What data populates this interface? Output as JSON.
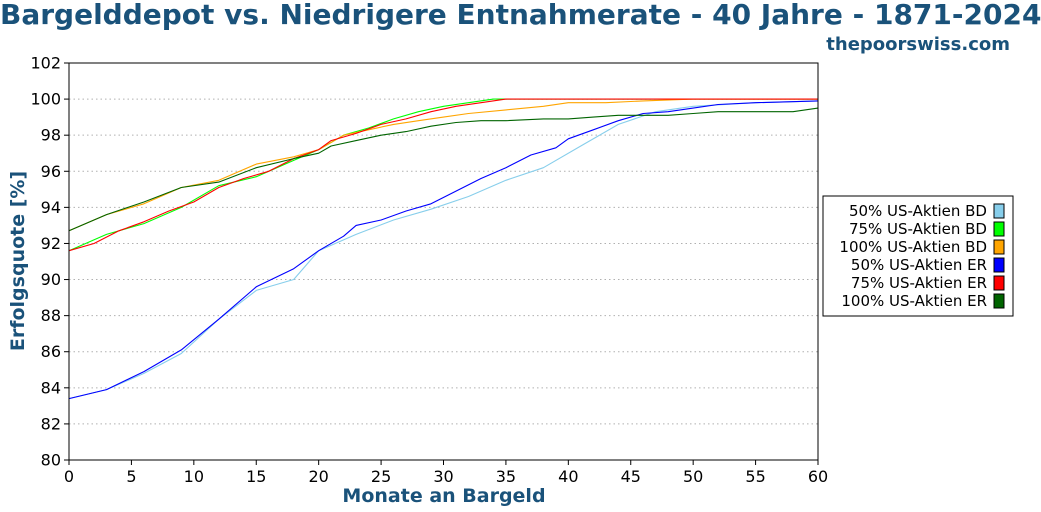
{
  "header": {
    "title": "Bargelddepot vs. Niedrigere Entnahmerate - 40 Jahre - 1871-2024",
    "brand": "thepoorswiss.com"
  },
  "chart_data": {
    "type": "line",
    "title": "Bargelddepot vs. Niedrigere Entnahmerate - 40 Jahre - 1871-2024",
    "xlabel": "Monate an Bargeld",
    "ylabel": "Erfolgsquote [%]",
    "xlim": [
      0,
      60
    ],
    "ylim": [
      80,
      102
    ],
    "xticks": [
      0,
      5,
      10,
      15,
      20,
      25,
      30,
      35,
      40,
      45,
      50,
      55,
      60
    ],
    "yticks": [
      80,
      82,
      84,
      86,
      88,
      90,
      92,
      94,
      96,
      98,
      100,
      102
    ],
    "grid": "horizontal dotted",
    "legend_position": "right",
    "series": [
      {
        "name": "50% US-Aktien BD",
        "color": "#87ceeb",
        "x": [
          0,
          3,
          6,
          9,
          12,
          15,
          18,
          20,
          23,
          26,
          29,
          32,
          35,
          38,
          41,
          44,
          47,
          50,
          55,
          60
        ],
        "y": [
          83.4,
          83.9,
          84.8,
          85.9,
          87.8,
          89.4,
          90.0,
          91.6,
          92.5,
          93.3,
          93.9,
          94.6,
          95.5,
          96.2,
          97.4,
          98.6,
          99.3,
          99.6,
          99.8,
          99.9
        ]
      },
      {
        "name": "75% US-Aktien BD",
        "color": "#00ff00",
        "x": [
          0,
          3,
          6,
          9,
          12,
          15,
          18,
          20,
          22,
          24,
          26,
          28,
          30,
          32,
          34,
          36,
          38,
          40,
          50,
          60
        ],
        "y": [
          91.6,
          92.5,
          93.1,
          94.0,
          95.2,
          95.7,
          96.6,
          97.2,
          98.0,
          98.4,
          98.9,
          99.3,
          99.6,
          99.8,
          100,
          100,
          100,
          100,
          100,
          100
        ]
      },
      {
        "name": "100% US-Aktien BD",
        "color": "#ffa500",
        "x": [
          0,
          3,
          6,
          9,
          12,
          15,
          18,
          20,
          22,
          24,
          26,
          28,
          30,
          32,
          35,
          38,
          40,
          43,
          46,
          50,
          55,
          60
        ],
        "y": [
          92.7,
          93.6,
          94.2,
          95.1,
          95.5,
          96.4,
          96.8,
          97.2,
          98.0,
          98.3,
          98.6,
          98.8,
          99.0,
          99.2,
          99.4,
          99.6,
          99.8,
          99.8,
          99.9,
          100,
          100,
          100
        ]
      },
      {
        "name": "50% US-Aktien ER",
        "color": "#0000ff",
        "x": [
          0,
          3,
          6,
          9,
          12,
          15,
          18,
          20,
          22,
          23,
          25,
          27,
          29,
          31,
          33,
          35,
          37,
          39,
          40,
          42,
          44,
          46,
          48,
          50,
          52,
          55,
          60
        ],
        "y": [
          83.4,
          83.9,
          84.9,
          86.1,
          87.8,
          89.6,
          90.6,
          91.6,
          92.4,
          93.0,
          93.3,
          93.8,
          94.2,
          94.9,
          95.6,
          96.2,
          96.9,
          97.3,
          97.8,
          98.3,
          98.8,
          99.2,
          99.3,
          99.5,
          99.7,
          99.8,
          99.9
        ]
      },
      {
        "name": "75% US-Aktien ER",
        "color": "#ff0000",
        "x": [
          0,
          2,
          4,
          6,
          8,
          10,
          12,
          14,
          16,
          18,
          20,
          21,
          23,
          25,
          27,
          29,
          31,
          33,
          35,
          40,
          50,
          60
        ],
        "y": [
          91.6,
          92.0,
          92.7,
          93.2,
          93.8,
          94.3,
          95.1,
          95.6,
          96.0,
          96.7,
          97.2,
          97.7,
          98.1,
          98.6,
          98.9,
          99.3,
          99.6,
          99.8,
          100,
          100,
          100,
          100
        ]
      },
      {
        "name": "100% US-Aktien ER",
        "color": "#006400",
        "x": [
          0,
          3,
          6,
          9,
          12,
          15,
          18,
          20,
          21,
          23,
          25,
          27,
          29,
          31,
          33,
          35,
          38,
          40,
          42,
          44,
          46,
          48,
          50,
          52,
          55,
          58,
          60
        ],
        "y": [
          92.7,
          93.6,
          94.3,
          95.1,
          95.4,
          96.2,
          96.7,
          97.0,
          97.4,
          97.7,
          98.0,
          98.2,
          98.5,
          98.7,
          98.8,
          98.8,
          98.9,
          98.9,
          99.0,
          99.1,
          99.1,
          99.1,
          99.2,
          99.3,
          99.3,
          99.3,
          99.5
        ]
      }
    ]
  }
}
